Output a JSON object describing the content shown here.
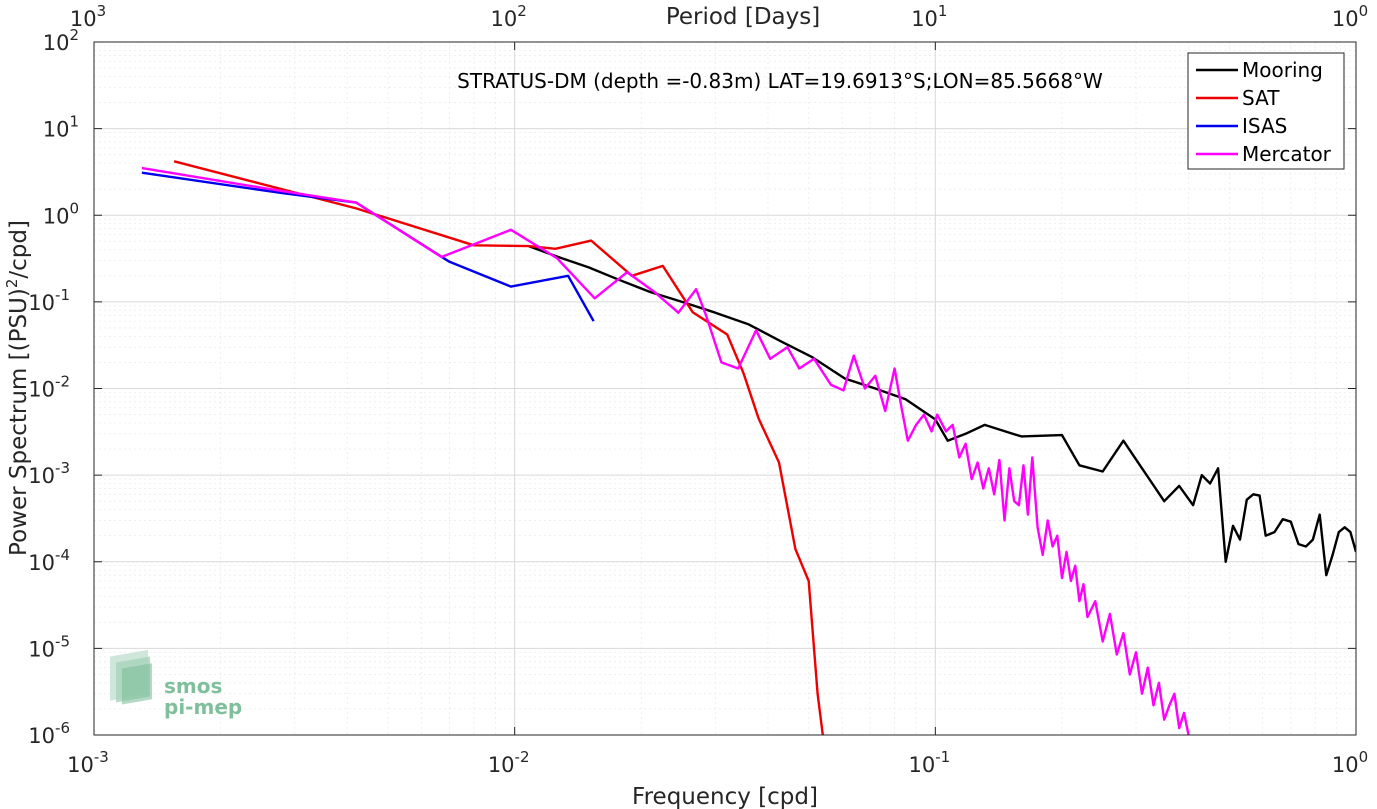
{
  "chart_data": {
    "type": "line",
    "title": "STRATUS-DM (depth =-0.83m) LAT=19.6913°S;LON=85.5668°W",
    "xlabel": "Frequency [cpd]",
    "ylabel": "Power Spectrum [(PSU)²/cpd]",
    "ylabel_parts": {
      "before": "Power Spectrum [(PSU)",
      "sup": "2",
      "after": "/cpd]"
    },
    "top_xlabel": "Period [Days]",
    "x_scale": "log",
    "y_scale": "log",
    "xlim": [
      0.001,
      1
    ],
    "ylim": [
      1e-06,
      100
    ],
    "grid": true,
    "legend_position": "top-right",
    "x_ticks": [
      {
        "base": "10",
        "exp": "-3",
        "value": 0.001
      },
      {
        "base": "10",
        "exp": "-2",
        "value": 0.01
      },
      {
        "base": "10",
        "exp": "-1",
        "value": 0.1
      },
      {
        "base": "10",
        "exp": "0",
        "value": 1
      }
    ],
    "top_x_ticks": [
      {
        "base": "10",
        "exp": "3",
        "value": 0.001
      },
      {
        "base": "10",
        "exp": "2",
        "value": 0.01
      },
      {
        "base": "10",
        "exp": "1",
        "value": 0.1
      },
      {
        "base": "10",
        "exp": "0",
        "value": 1
      }
    ],
    "y_ticks": [
      {
        "base": "10",
        "exp": "2",
        "value": 100
      },
      {
        "base": "10",
        "exp": "1",
        "value": 10
      },
      {
        "base": "10",
        "exp": "0",
        "value": 1
      },
      {
        "base": "10",
        "exp": "-1",
        "value": 0.1
      },
      {
        "base": "10",
        "exp": "-2",
        "value": 0.01
      },
      {
        "base": "10",
        "exp": "-3",
        "value": 0.001
      },
      {
        "base": "10",
        "exp": "-4",
        "value": 0.0001
      },
      {
        "base": "10",
        "exp": "-5",
        "value": 1e-05
      },
      {
        "base": "10",
        "exp": "-6",
        "value": 1e-06
      }
    ],
    "series": [
      {
        "name": "Mooring",
        "color": "#000000",
        "x": [
          0.0108,
          0.0127,
          0.015,
          0.0177,
          0.021,
          0.025,
          0.03,
          0.036,
          0.043,
          0.051,
          0.061,
          0.072,
          0.085,
          0.1,
          0.107,
          0.118,
          0.131,
          0.16,
          0.2,
          0.22,
          0.25,
          0.28,
          0.31,
          0.35,
          0.38,
          0.41,
          0.43,
          0.45,
          0.47,
          0.49,
          0.51,
          0.53,
          0.55,
          0.57,
          0.59,
          0.61,
          0.64,
          0.67,
          0.7,
          0.73,
          0.76,
          0.79,
          0.82,
          0.85,
          0.88,
          0.91,
          0.94,
          0.97,
          1.0
        ],
        "y": [
          0.44,
          0.33,
          0.25,
          0.18,
          0.13,
          0.1,
          0.075,
          0.055,
          0.035,
          0.023,
          0.013,
          0.01,
          0.0075,
          0.0044,
          0.0025,
          0.003,
          0.0038,
          0.0028,
          0.0029,
          0.0013,
          0.0011,
          0.0025,
          0.0012,
          0.0005,
          0.00075,
          0.00045,
          0.001,
          0.0008,
          0.0012,
          0.0001,
          0.00026,
          0.00018,
          0.00052,
          0.0006,
          0.00058,
          0.0002,
          0.00022,
          0.00031,
          0.00029,
          0.00016,
          0.00015,
          0.00018,
          0.00035,
          7e-05,
          0.00012,
          0.00022,
          0.00025,
          0.00022,
          0.00013
        ]
      },
      {
        "name": "SAT",
        "color": "#ee0000",
        "x": [
          0.00155,
          0.0042,
          0.008,
          0.0108,
          0.0125,
          0.0152,
          0.019,
          0.0225,
          0.0265,
          0.032,
          0.035,
          0.038,
          0.0425,
          0.0465,
          0.05,
          0.0525,
          0.054
        ],
        "y": [
          4.2,
          1.2,
          0.45,
          0.44,
          0.41,
          0.51,
          0.2,
          0.26,
          0.076,
          0.042,
          0.015,
          0.0045,
          0.0014,
          0.00014,
          6e-05,
          3e-06,
          1e-06
        ]
      },
      {
        "name": "ISAS",
        "color": "#0000ee",
        "x": [
          0.0013,
          0.0028,
          0.0042,
          0.007,
          0.0098,
          0.0134,
          0.0154
        ],
        "y": [
          3.1,
          1.8,
          1.4,
          0.29,
          0.15,
          0.2,
          0.06
        ]
      },
      {
        "name": "Mercator",
        "color": "#ff00ff",
        "x": [
          0.0013,
          0.0028,
          0.0042,
          0.0067,
          0.0098,
          0.0126,
          0.0155,
          0.0185,
          0.0215,
          0.0245,
          0.027,
          0.0285,
          0.031,
          0.034,
          0.0375,
          0.0405,
          0.0445,
          0.0475,
          0.0515,
          0.0565,
          0.0605,
          0.064,
          0.068,
          0.072,
          0.076,
          0.08,
          0.083,
          0.086,
          0.09,
          0.094,
          0.098,
          0.101,
          0.106,
          0.11,
          0.114,
          0.118,
          0.122,
          0.126,
          0.13,
          0.134,
          0.138,
          0.142,
          0.146,
          0.15,
          0.154,
          0.158,
          0.162,
          0.166,
          0.17,
          0.175,
          0.18,
          0.185,
          0.19,
          0.195,
          0.2,
          0.205,
          0.21,
          0.215,
          0.22,
          0.225,
          0.23,
          0.24,
          0.25,
          0.26,
          0.27,
          0.28,
          0.29,
          0.3,
          0.31,
          0.32,
          0.33,
          0.34,
          0.35,
          0.36,
          0.37,
          0.38,
          0.39,
          0.4
        ],
        "y": [
          3.5,
          1.9,
          1.4,
          0.33,
          0.68,
          0.32,
          0.11,
          0.22,
          0.13,
          0.075,
          0.14,
          0.07,
          0.02,
          0.017,
          0.047,
          0.022,
          0.03,
          0.017,
          0.022,
          0.011,
          0.0095,
          0.024,
          0.01,
          0.014,
          0.0055,
          0.017,
          0.0062,
          0.0025,
          0.0038,
          0.005,
          0.0032,
          0.005,
          0.0032,
          0.0038,
          0.0016,
          0.0023,
          0.0009,
          0.0014,
          0.0007,
          0.0012,
          0.0006,
          0.0015,
          0.0003,
          0.0012,
          0.0005,
          0.00045,
          0.0013,
          0.00035,
          0.0016,
          0.00025,
          0.00012,
          0.0003,
          0.00015,
          0.0002,
          6.5e-05,
          0.00013,
          6e-05,
          9e-05,
          3.5e-05,
          5.5e-05,
          2.3e-05,
          3.5e-05,
          1.2e-05,
          2.5e-05,
          8.5e-06,
          1.5e-05,
          5e-06,
          9e-06,
          3e-06,
          6e-06,
          2.2e-06,
          4e-06,
          1.5e-06,
          2.2e-06,
          3e-06,
          1.2e-06,
          1.8e-06,
          1e-06
        ]
      }
    ]
  },
  "logo": {
    "line1": "smos",
    "line2": "pi-mep"
  }
}
